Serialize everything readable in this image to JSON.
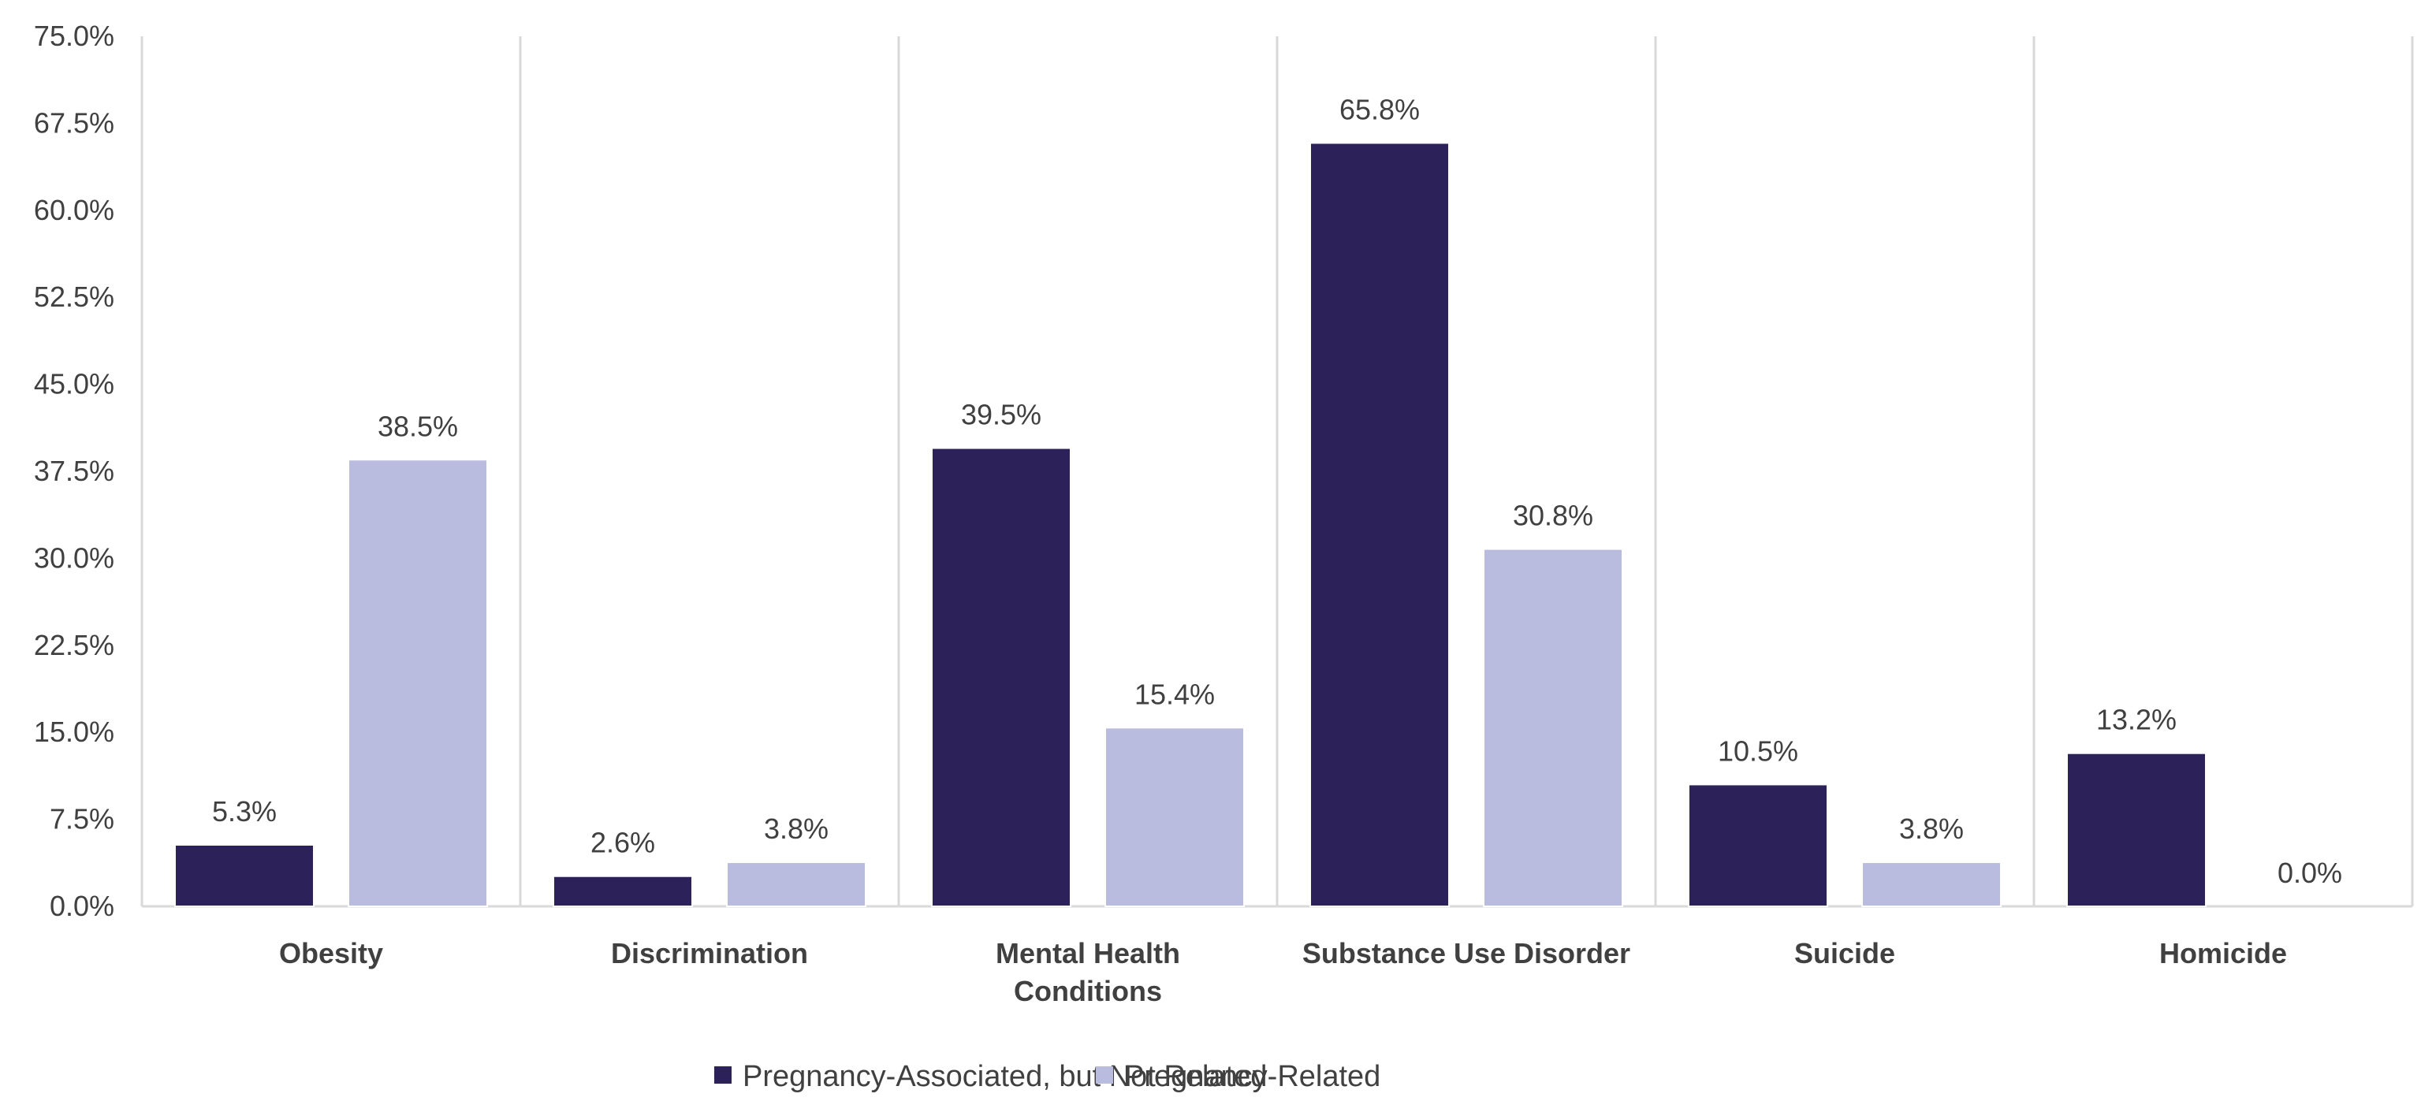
{
  "chart_data": {
    "type": "bar",
    "categories": [
      [
        "Obesity"
      ],
      [
        "Discrimination"
      ],
      [
        "Mental Health",
        "Conditions"
      ],
      [
        "Substance Use Disorder"
      ],
      [
        "Suicide"
      ],
      [
        "Homicide"
      ]
    ],
    "series": [
      {
        "name": "Pregnancy-Associated, but Not Related",
        "color": "#2c2259",
        "values": [
          5.3,
          2.6,
          39.5,
          65.8,
          10.5,
          13.2
        ],
        "labels": [
          "5.3%",
          "2.6%",
          "39.5%",
          "65.8%",
          "10.5%",
          "13.2%"
        ]
      },
      {
        "name": "Pregnancy-Related",
        "color": "#b9bcdf",
        "values": [
          38.5,
          3.8,
          15.4,
          30.8,
          3.8,
          0.0
        ],
        "labels": [
          "38.5%",
          "3.8%",
          "15.4%",
          "30.8%",
          "3.8%",
          "0.0%"
        ]
      }
    ],
    "y_ticks": [
      "0.0%",
      "7.5%",
      "15.0%",
      "22.5%",
      "30.0%",
      "37.5%",
      "45.0%",
      "52.5%",
      "60.0%",
      "67.5%",
      "75.0%"
    ],
    "ylim": [
      0,
      75
    ],
    "title": "",
    "xlabel": "",
    "ylabel": "",
    "grid": "vertical separators between categories",
    "legend_position": "bottom"
  }
}
